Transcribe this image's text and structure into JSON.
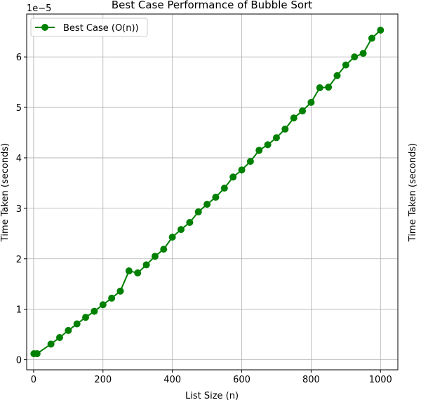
{
  "chart_data": {
    "type": "line",
    "title": "Best Case Performance of Bubble Sort",
    "xlabel": "List Size (n)",
    "ylabel": "Time Taken (seconds)",
    "ylabel_right": "Time Taken (seconds)",
    "y_offset_text": "1e−5",
    "xlim": [
      -20,
      1050
    ],
    "ylim": [
      -0.2,
      6.85
    ],
    "y_scale_factor": 1e-05,
    "x_ticks": [
      0,
      200,
      400,
      600,
      800,
      1000
    ],
    "y_ticks": [
      0,
      1,
      2,
      3,
      4,
      5,
      6
    ],
    "grid": true,
    "legend_position": "top-left",
    "series": [
      {
        "name": "Best Case (O(n))",
        "color": "#008000",
        "marker": "circle",
        "x": [
          1,
          10,
          50,
          75,
          100,
          125,
          150,
          175,
          200,
          225,
          250,
          275,
          300,
          325,
          350,
          375,
          400,
          425,
          450,
          475,
          500,
          525,
          550,
          575,
          600,
          625,
          650,
          675,
          700,
          725,
          750,
          775,
          800,
          825,
          850,
          875,
          900,
          925,
          950,
          975,
          1000
        ],
        "y": [
          0.12,
          0.12,
          0.31,
          0.44,
          0.58,
          0.71,
          0.84,
          0.96,
          1.09,
          1.22,
          1.36,
          1.76,
          1.72,
          1.88,
          2.05,
          2.19,
          2.43,
          2.58,
          2.72,
          2.93,
          3.08,
          3.22,
          3.4,
          3.62,
          3.76,
          3.93,
          4.15,
          4.26,
          4.4,
          4.57,
          4.79,
          4.93,
          5.1,
          5.39,
          5.4,
          5.63,
          5.84,
          6.0,
          6.07,
          6.37,
          6.53
        ]
      }
    ]
  }
}
